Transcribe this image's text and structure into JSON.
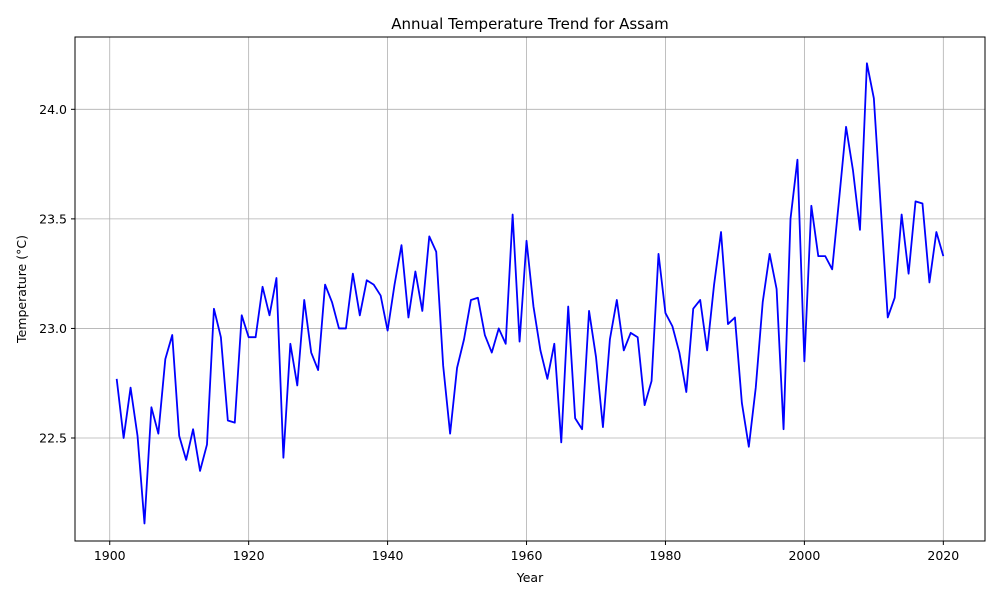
{
  "chart_data": {
    "type": "line",
    "title": "Annual Temperature Trend for Assam",
    "xlabel": "Year",
    "ylabel": "Temperature (°C)",
    "xlim": [
      1895,
      2026
    ],
    "ylim": [
      22.03,
      24.33
    ],
    "xticks": [
      1900,
      1920,
      1940,
      1960,
      1980,
      2000,
      2020
    ],
    "yticks": [
      22.5,
      23.0,
      23.5,
      24.0
    ],
    "xtick_labels": [
      "1900",
      "1920",
      "1940",
      "1960",
      "1980",
      "2000",
      "2020"
    ],
    "ytick_labels": [
      "22.5",
      "23.0",
      "23.5",
      "24.0"
    ],
    "grid": true,
    "color": "#0000ff",
    "series": [
      {
        "x": [
          1901,
          1902,
          1903,
          1904,
          1905,
          1906,
          1907,
          1908,
          1909,
          1910,
          1911,
          1912,
          1913,
          1914,
          1915,
          1916,
          1917,
          1918,
          1919,
          1920,
          1921,
          1922,
          1923,
          1924,
          1925,
          1926,
          1927,
          1928,
          1929,
          1930,
          1931,
          1932,
          1933,
          1934,
          1935,
          1936,
          1937,
          1938,
          1939,
          1940,
          1941,
          1942,
          1943,
          1944,
          1945,
          1946,
          1947,
          1948,
          1949,
          1950,
          1951,
          1952,
          1953,
          1954,
          1955,
          1956,
          1957,
          1958,
          1959,
          1960,
          1961,
          1962,
          1963,
          1964,
          1965,
          1966,
          1967,
          1968,
          1969,
          1970,
          1971,
          1972,
          1973,
          1974,
          1975,
          1976,
          1977,
          1978,
          1979,
          1980,
          1981,
          1982,
          1983,
          1984,
          1985,
          1986,
          1987,
          1988,
          1989,
          1990,
          1991,
          1992,
          1993,
          1994,
          1995,
          1996,
          1997,
          1998,
          1999,
          2000,
          2001,
          2002,
          2003,
          2004,
          2005,
          2006,
          2007,
          2008,
          2009,
          2010,
          2011,
          2012,
          2013,
          2014,
          2015,
          2016,
          2017,
          2018,
          2019,
          2020
        ],
        "values": [
          22.77,
          22.5,
          22.73,
          22.51,
          22.11,
          22.64,
          22.52,
          22.86,
          22.97,
          22.51,
          22.4,
          22.54,
          22.35,
          22.47,
          23.09,
          22.96,
          22.58,
          22.57,
          23.06,
          22.96,
          22.96,
          23.19,
          23.06,
          23.23,
          22.41,
          22.93,
          22.74,
          23.13,
          22.89,
          22.81,
          23.2,
          23.12,
          23.0,
          23.0,
          23.25,
          23.06,
          23.22,
          23.2,
          23.15,
          22.99,
          23.2,
          23.38,
          23.05,
          23.26,
          23.08,
          23.42,
          23.35,
          22.83,
          22.52,
          22.82,
          22.95,
          23.13,
          23.14,
          22.97,
          22.89,
          23.0,
          22.93,
          23.52,
          22.94,
          23.4,
          23.1,
          22.9,
          22.77,
          22.93,
          22.48,
          23.1,
          22.59,
          22.54,
          23.08,
          22.87,
          22.55,
          22.95,
          23.13,
          22.9,
          22.98,
          22.96,
          22.65,
          22.76,
          23.34,
          23.07,
          23.01,
          22.89,
          22.71,
          23.09,
          23.13,
          22.9,
          23.2,
          23.44,
          23.02,
          23.05,
          22.66,
          22.46,
          22.73,
          23.12,
          23.34,
          23.18,
          22.54,
          23.5,
          23.77,
          22.85,
          23.56,
          23.33,
          23.33,
          23.27,
          23.59,
          23.92,
          23.72,
          23.45,
          24.21,
          24.05,
          23.55,
          23.05,
          23.14,
          23.52,
          23.25,
          23.58,
          23.57,
          23.21,
          23.44,
          23.33
        ]
      }
    ]
  }
}
